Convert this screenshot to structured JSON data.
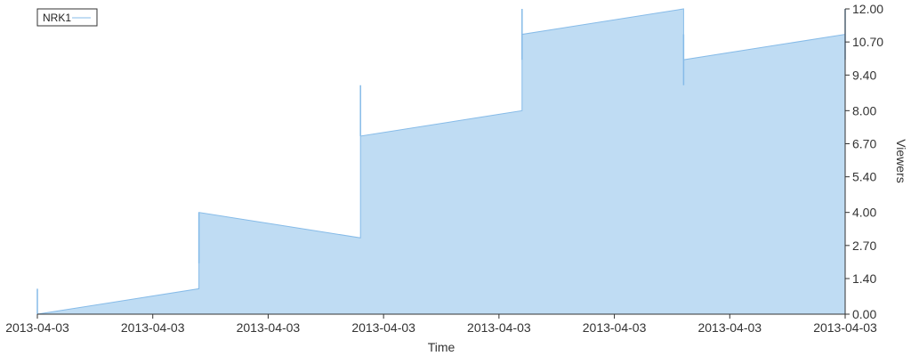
{
  "colors": {
    "fill": "#bfdcf3",
    "line": "#86bbe8",
    "axis": "#333333"
  },
  "chart_data": {
    "type": "area",
    "title": "",
    "xlabel": "Time",
    "ylabel": "Viewers",
    "y_axis_side": "right",
    "ylim": [
      0,
      12
    ],
    "y_ticks": [
      "0.00",
      "1.40",
      "2.70",
      "4.00",
      "5.40",
      "6.70",
      "8.00",
      "9.40",
      "10.70",
      "12.00"
    ],
    "x_tick_labels": [
      "2013-04-03",
      "2013-04-03",
      "2013-04-03",
      "2013-04-03",
      "2013-04-03",
      "2013-04-03",
      "2013-04-03",
      "2013-04-03"
    ],
    "legend": {
      "position": "top-left",
      "entries": [
        "NRK1"
      ]
    },
    "grid": false,
    "series": [
      {
        "name": "NRK1",
        "points": [
          [
            0,
            0
          ],
          [
            0.2,
            1
          ],
          [
            0.2,
            4
          ],
          [
            0.4,
            3
          ],
          [
            0.4,
            7
          ],
          [
            0.6,
            8
          ],
          [
            0.6,
            11
          ],
          [
            0.8,
            12
          ],
          [
            0.8,
            10
          ],
          [
            1.0,
            11
          ],
          [
            1.0,
            12
          ]
        ],
        "spikes": [
          [
            0,
            0,
            1
          ],
          [
            0.2,
            2,
            4
          ],
          [
            0.4,
            7,
            9
          ],
          [
            0.6,
            10,
            12
          ],
          [
            0.8,
            9,
            11
          ],
          [
            1.0,
            10,
            12
          ]
        ]
      }
    ]
  }
}
